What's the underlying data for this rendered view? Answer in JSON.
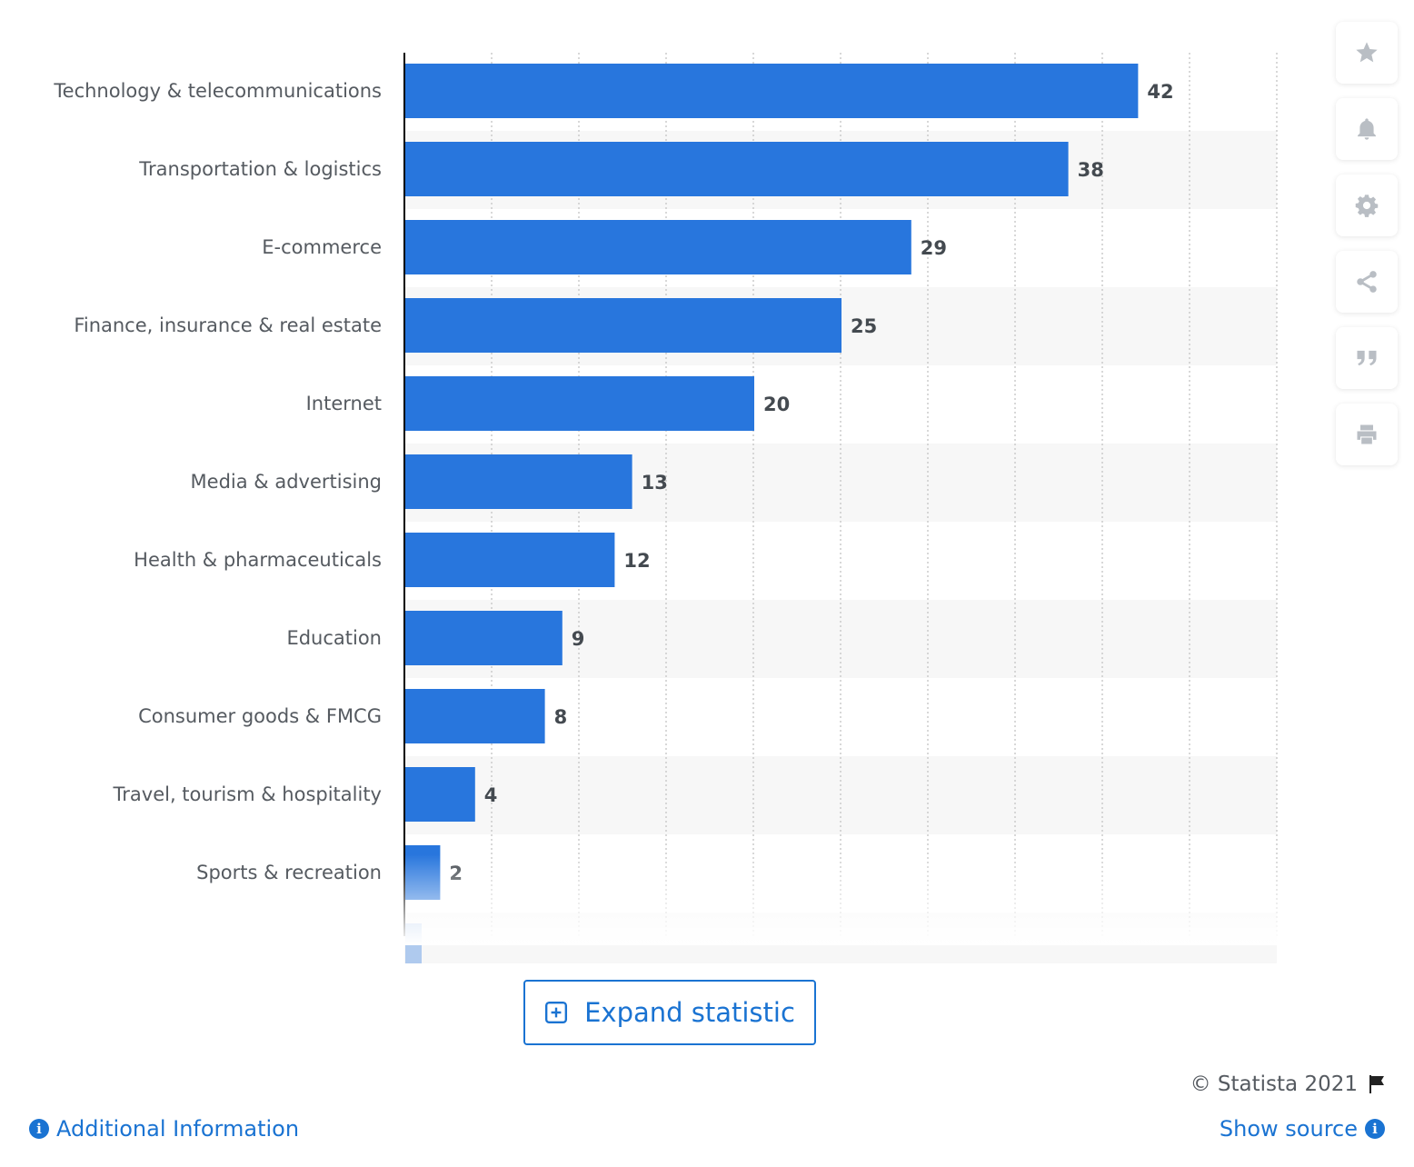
{
  "chart_data": {
    "type": "bar",
    "orientation": "horizontal",
    "categories": [
      "Technology & telecommunications",
      "Transportation & logistics",
      "E-commerce",
      "Finance, insurance & real estate",
      "Internet",
      "Media & advertising",
      "Health & pharmaceuticals",
      "Education",
      "Consumer goods & FMCG",
      "Travel, tourism & hospitality",
      "Sports & recreation"
    ],
    "values": [
      42,
      38,
      29,
      25,
      20,
      13,
      12,
      9,
      8,
      4,
      2
    ],
    "xlim": [
      0,
      50
    ],
    "grid": true,
    "truncated_below": true
  },
  "colors": {
    "bar": "#2876dd",
    "accent": "#1a73d2",
    "band": "#f7f7f7",
    "grid": "#cccccc"
  },
  "toolbar": {
    "icons": [
      "star-icon",
      "bell-icon",
      "gear-icon",
      "share-icon",
      "quote-icon",
      "print-icon"
    ]
  },
  "expand": {
    "label": "Expand statistic"
  },
  "footer": {
    "copyright": "© Statista 2021",
    "additional_info": "Additional Information",
    "show_source": "Show source",
    "info_glyph": "i"
  }
}
